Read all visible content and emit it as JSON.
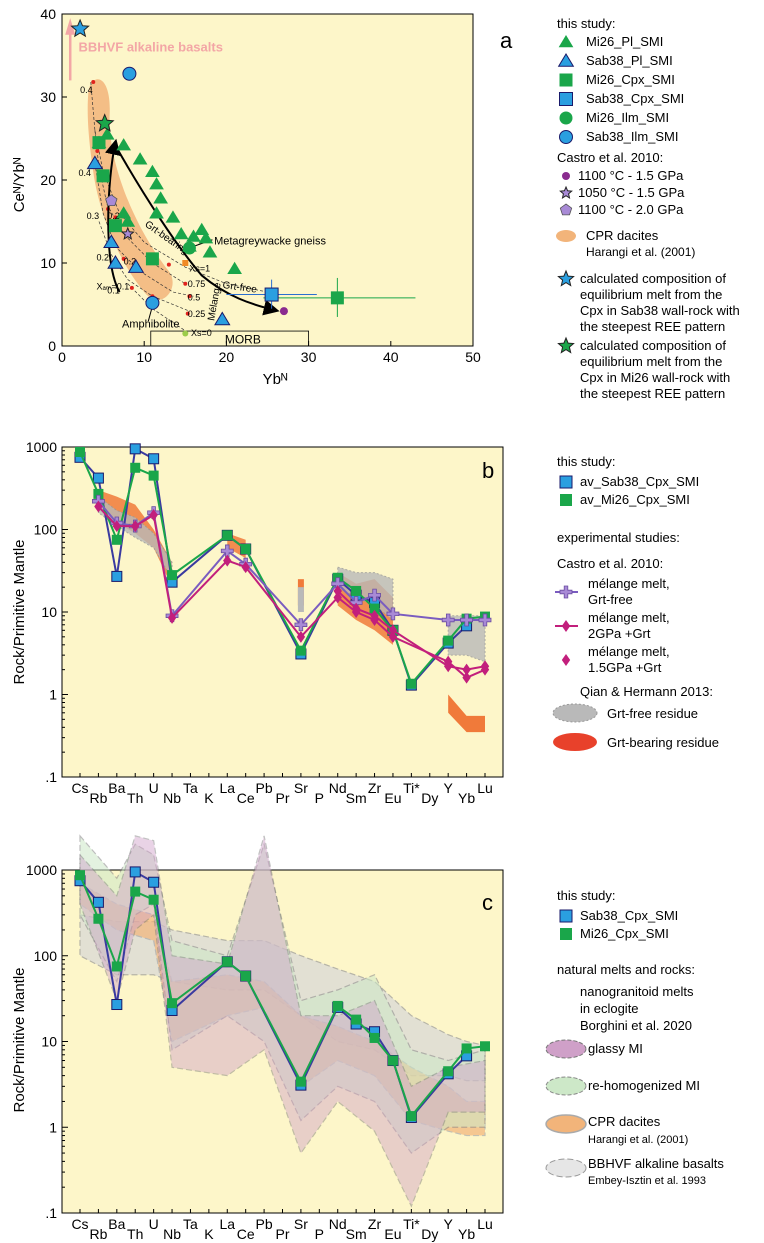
{
  "colors": {
    "plot_bg": "#fdf6c9",
    "green": "#1aa64a",
    "blue": "#2a9fe0",
    "purple": "#8a2b8f",
    "purple_light": "#a88ad6",
    "magenta": "#c21f7c",
    "orange": "#f2b47a",
    "red": "#e8412b",
    "grey": "#b9b9b9",
    "pink_arrow": "#f3a6a6",
    "dark_outline": "#1a1a6a"
  },
  "chart_data": [
    {
      "panel": "a",
      "type": "scatter",
      "xlabel": "Ybᴺ",
      "ylabel": "Ceᴺ/Ybᴺ",
      "xlim": [
        0,
        50
      ],
      "ylim": [
        0,
        40
      ],
      "xticks": [
        "0",
        "10",
        "20",
        "30",
        "40",
        "50"
      ],
      "yticks": [
        "0",
        "10",
        "20",
        "30",
        "40"
      ],
      "series": [
        {
          "name": "Mi26_Pl_SMI",
          "marker": "triangle",
          "color": "green",
          "points": [
            [
              4.5,
              24.5
            ],
            [
              5.5,
              25.5
            ],
            [
              7.5,
              24.2
            ],
            [
              9.5,
              22.5
            ],
            [
              11,
              21
            ],
            [
              11.5,
              19.5
            ],
            [
              12,
              17.8
            ],
            [
              11.5,
              16
            ],
            [
              13.5,
              15.5
            ],
            [
              14.5,
              13.5
            ],
            [
              16,
              13.2
            ],
            [
              17,
              14
            ],
            [
              17.5,
              13
            ],
            [
              15.5,
              12
            ],
            [
              18,
              11.3
            ],
            [
              21,
              9.3
            ],
            [
              7.5,
              16
            ],
            [
              8,
              15
            ]
          ]
        },
        {
          "name": "Sab38_Pl_SMI",
          "marker": "triangle",
          "color": "blue",
          "points": [
            [
              6,
              12.5
            ],
            [
              6.5,
              10
            ],
            [
              9,
              9.5
            ],
            [
              19.5,
              3.2
            ],
            [
              4,
              22
            ]
          ]
        },
        {
          "name": "Mi26_Cpx_SMI",
          "marker": "square",
          "color": "green",
          "points": [
            [
              5,
              20.5
            ],
            [
              4.5,
              24.5
            ],
            [
              6.5,
              14.5
            ],
            [
              11,
              10.5
            ],
            [
              33.5,
              5.8
            ]
          ]
        },
        {
          "name": "Sab38_Cpx_SMI",
          "marker": "square",
          "color": "blue",
          "points": [
            [
              25.5,
              6.2
            ]
          ]
        },
        {
          "name": "Mi26_Ilm_SMI",
          "marker": "circle",
          "color": "green",
          "points": [
            [
              15.5,
              11.8
            ]
          ]
        },
        {
          "name": "Sab38_Ilm_SMI",
          "marker": "circle",
          "color": "blue",
          "points": [
            [
              8.2,
              32.8
            ],
            [
              11,
              5.2
            ]
          ]
        }
      ],
      "castro": [
        {
          "name": "1100 °C - 1.5 GPa",
          "marker": "circle",
          "color": "purple",
          "points": [
            [
              27,
              4.2
            ]
          ]
        },
        {
          "name": "1050 °C - 1.5 GPa",
          "marker": "star",
          "color": "purple_light",
          "points": [
            [
              8,
              13.5
            ]
          ]
        },
        {
          "name": "1100 °C - 2.0 GPa",
          "marker": "pentagon",
          "color": "purple_light",
          "points": [
            [
              6,
              17.5
            ]
          ]
        }
      ],
      "calculated_melts": [
        {
          "name": "Sab38",
          "color": "blue",
          "point": [
            2.2,
            38.2
          ]
        },
        {
          "name": "Mi26",
          "color": "green",
          "point": [
            5.2,
            26.8
          ]
        }
      ],
      "annotations": {
        "panel_letter": "a",
        "bbhvf": "BBHVF alkaline basalts",
        "metagreywacke": "Metagreywacke gneiss",
        "amphibolite": "Amphibolite",
        "morb": "MORB",
        "grt_bearing": "Grt-bearing",
        "grt_free": "Grt-free",
        "melange": "Mélange",
        "xs1": "Xs=1",
        "xs0": "Xs=0",
        "xam": "Xₐₘ=0.1",
        "tick_04a": "0.4",
        "tick_04b": "0.4",
        "tick_03": "0.3",
        "tick_02a": "0.2",
        "tick_02b": "0.2",
        "tick_02c": "0.2",
        "tick_01": "0.1",
        "tick_075": "0.75",
        "tick_05": "0.5",
        "tick_025": "0.25"
      },
      "legend": {
        "this_study": "this study:",
        "items": [
          "Mi26_Pl_SMI",
          "Sab38_Pl_SMI",
          "Mi26_Cpx_SMI",
          "Sab38_Cpx_SMI",
          "Mi26_Ilm_SMI",
          "Sab38_Ilm_SMI"
        ],
        "castro_title": "Castro et al. 2010:",
        "castro_items": [
          "1100 °C - 1.5 GPa",
          "1050 °C - 1.5 GPa",
          "1100 °C - 2.0 GPa"
        ],
        "cpr_line1": "CPR dacites",
        "cpr_line2": "Harangi et al. (2001)",
        "calc_sab_lines": [
          "calculated composition of",
          "equilibrium melt from the",
          "Cpx in Sab38 wall-rock with",
          "the steepest REE pattern"
        ],
        "calc_mi_lines": [
          "calculated composition of",
          "equilibrium melt from the",
          "Cpx in Mi26 wall-rock with",
          "the steepest REE pattern"
        ]
      }
    },
    {
      "panel": "b",
      "type": "line",
      "ylabel": "Rock/Primitive Mantle",
      "yscale": "log",
      "ylim": [
        0.1,
        1000
      ],
      "yticks": [
        "1000",
        "100",
        "10",
        "1",
        ".1"
      ],
      "categories": [
        "Cs",
        "Rb",
        "Ba",
        "Th",
        "U",
        "Nb",
        "Ta",
        "K",
        "La",
        "Ce",
        "Pb",
        "Pr",
        "Sr",
        "P",
        "Nd",
        "Sm",
        "Zr",
        "Eu",
        "Ti*",
        "Dy",
        "Y",
        "Yb",
        "Lu"
      ],
      "series": [
        {
          "name": "av_Sab38_Cpx_SMI",
          "color": "blue",
          "values": [
            750,
            420,
            27,
            950,
            720,
            23,
            null,
            null,
            85,
            58,
            null,
            null,
            3.1,
            null,
            25,
            16,
            13,
            6,
            1.3,
            null,
            4.2,
            6.8,
            null
          ]
        },
        {
          "name": "av_Mi26_Cpx_SMI",
          "color": "green",
          "values": [
            870,
            270,
            75,
            560,
            450,
            28,
            null,
            null,
            85,
            58,
            null,
            null,
            3.4,
            null,
            26,
            18,
            11,
            6,
            1.35,
            null,
            4.5,
            8.3,
            8.8
          ]
        },
        {
          "name": "mélange melt, Grt-free",
          "color": "purple_light",
          "values": [
            null,
            220,
            120,
            110,
            160,
            9,
            null,
            null,
            55,
            38,
            null,
            null,
            7,
            null,
            22,
            13,
            16,
            9.5,
            null,
            null,
            8,
            8,
            8
          ]
        },
        {
          "name": "mélange melt, 2GPa +Grt",
          "color": "magenta",
          "values": [
            null,
            190,
            110,
            110,
            150,
            8.5,
            null,
            null,
            42,
            35,
            null,
            null,
            5,
            null,
            15,
            10,
            8,
            5,
            null,
            null,
            2.5,
            1.6,
            2
          ]
        },
        {
          "name": "mélange melt, 1.5GPa +Grt",
          "color": "magenta",
          "values": [
            null,
            null,
            null,
            null,
            null,
            null,
            null,
            null,
            null,
            null,
            null,
            null,
            null,
            null,
            18,
            11,
            9,
            6,
            null,
            null,
            2.2,
            2,
            2.2
          ]
        }
      ],
      "annotations": {
        "panel_letter": "b"
      },
      "legend": {
        "this_study": "this study:",
        "items": [
          "av_Sab38_Cpx_SMI",
          "av_Mi26_Cpx_SMI"
        ],
        "exp_title": "experimental studies:",
        "castro_title": "Castro et al. 2010:",
        "castro_items": [
          [
            "mélange melt,",
            "Grt-free"
          ],
          [
            "mélange melt,",
            "2GPa +Grt"
          ],
          [
            "mélange melt,",
            "1.5GPa +Grt"
          ]
        ],
        "qian_title": "Qian & Hermann 2013:",
        "qian_items": [
          "Grt-free residue",
          "Grt-bearing residue"
        ]
      }
    },
    {
      "panel": "c",
      "type": "line",
      "ylabel": "Rock/Primitive Mantle",
      "yscale": "log",
      "ylim": [
        0.1,
        1000
      ],
      "yticks": [
        "1000",
        "100",
        "10",
        "1",
        ".1"
      ],
      "categories": [
        "Cs",
        "Rb",
        "Ba",
        "Th",
        "U",
        "Nb",
        "Ta",
        "K",
        "La",
        "Ce",
        "Pb",
        "Pr",
        "Sr",
        "P",
        "Nd",
        "Sm",
        "Zr",
        "Eu",
        "Ti*",
        "Dy",
        "Y",
        "Yb",
        "Lu"
      ],
      "series": [
        {
          "name": "Sab38_Cpx_SMI",
          "color": "blue",
          "values": [
            750,
            420,
            27,
            950,
            720,
            23,
            null,
            null,
            85,
            58,
            null,
            null,
            3.1,
            null,
            25,
            16,
            13,
            6,
            1.3,
            null,
            4.2,
            6.8,
            null
          ]
        },
        {
          "name": "Mi26_Cpx_SMI",
          "color": "green",
          "values": [
            870,
            270,
            75,
            560,
            450,
            28,
            null,
            null,
            85,
            58,
            null,
            null,
            3.4,
            null,
            26,
            18,
            11,
            6,
            1.35,
            null,
            4.5,
            8.3,
            8.8
          ]
        }
      ],
      "annotations": {
        "panel_letter": "c"
      },
      "legend": {
        "this_study": "this study:",
        "items": [
          "Sab38_Cpx_SMI",
          "Mi26_Cpx_SMI"
        ],
        "natural_title": "natural melts and rocks:",
        "nano_lines": [
          "nanogranitoid melts",
          "in eclogite",
          "Borghini et al. 2020"
        ],
        "glassy": "glassy MI",
        "rehomog": "re-homogenized MI",
        "cpr": "CPR dacites",
        "cpr_ref": "Harangi et al. (2001)",
        "bbhvf": "BBHVF alkaline basalts",
        "bbhvf_ref": "Embey-Isztin et al. 1993"
      }
    }
  ]
}
